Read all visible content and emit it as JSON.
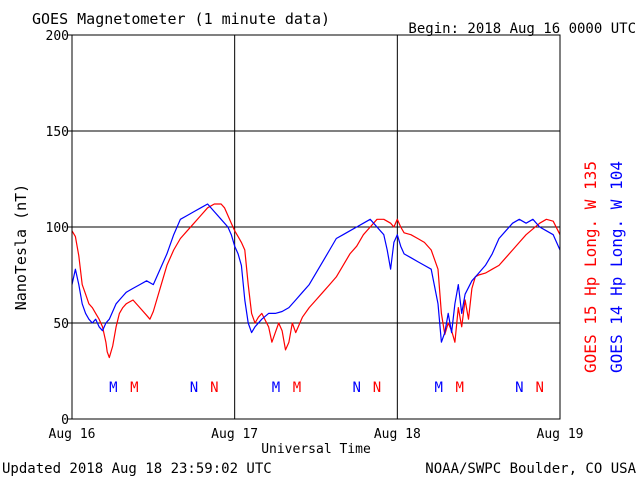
{
  "chart_data": {
    "type": "line",
    "title": "GOES Magnetometer (1 minute data)",
    "begin_label": "Begin:  2018 Aug 16 0000 UTC",
    "ylabel": "NanoTesla (nT)",
    "xlabel": "Universal Time",
    "ylim": [
      0,
      200
    ],
    "yticks": [
      "0",
      "50",
      "100",
      "150",
      "200"
    ],
    "xlim": [
      0,
      72
    ],
    "xticks": [
      {
        "x": 0,
        "label": "Aug 16"
      },
      {
        "x": 24,
        "label": "Aug 17"
      },
      {
        "x": 48,
        "label": "Aug 18"
      },
      {
        "x": 72,
        "label": "Aug 19"
      }
    ],
    "grid": true,
    "x_units": "hours since 2018 Aug 16 0000 UTC",
    "markers": [
      {
        "x": 6.1,
        "label": "M",
        "series": 1
      },
      {
        "x": 9.2,
        "label": "M",
        "series": 0
      },
      {
        "x": 18.0,
        "label": "N",
        "series": 1
      },
      {
        "x": 21.0,
        "label": "N",
        "series": 0
      },
      {
        "x": 30.1,
        "label": "M",
        "series": 1
      },
      {
        "x": 33.2,
        "label": "M",
        "series": 0
      },
      {
        "x": 42.0,
        "label": "N",
        "series": 1
      },
      {
        "x": 45.0,
        "label": "N",
        "series": 0
      },
      {
        "x": 54.1,
        "label": "M",
        "series": 1
      },
      {
        "x": 57.2,
        "label": "M",
        "series": 0
      },
      {
        "x": 66.0,
        "label": "N",
        "series": 1
      },
      {
        "x": 69.0,
        "label": "N",
        "series": 0
      }
    ],
    "series": [
      {
        "name": "GOES 15 Hp  Long. W 135",
        "color": "#ff0000",
        "points": [
          [
            0,
            98
          ],
          [
            0.5,
            95
          ],
          [
            1.0,
            85
          ],
          [
            1.5,
            70
          ],
          [
            2.0,
            65
          ],
          [
            2.5,
            60
          ],
          [
            3.0,
            58
          ],
          [
            3.5,
            55
          ],
          [
            4.0,
            52
          ],
          [
            4.5,
            48
          ],
          [
            5.0,
            40
          ],
          [
            5.2,
            35
          ],
          [
            5.5,
            32
          ],
          [
            6.0,
            38
          ],
          [
            6.5,
            48
          ],
          [
            7.0,
            55
          ],
          [
            7.5,
            58
          ],
          [
            8.0,
            60
          ],
          [
            9.0,
            62
          ],
          [
            10.0,
            58
          ],
          [
            11.0,
            54
          ],
          [
            11.5,
            52
          ],
          [
            12.0,
            56
          ],
          [
            13.0,
            68
          ],
          [
            14.0,
            80
          ],
          [
            15.0,
            88
          ],
          [
            16.0,
            94
          ],
          [
            17.0,
            98
          ],
          [
            18.0,
            102
          ],
          [
            19.0,
            106
          ],
          [
            20.0,
            110
          ],
          [
            21.0,
            112
          ],
          [
            22.0,
            112
          ],
          [
            22.5,
            110
          ],
          [
            23.0,
            106
          ],
          [
            23.5,
            102
          ],
          [
            24.0,
            98
          ],
          [
            24.5,
            95
          ],
          [
            25.0,
            92
          ],
          [
            25.5,
            88
          ],
          [
            26.0,
            70
          ],
          [
            26.5,
            55
          ],
          [
            27.0,
            50
          ],
          [
            27.5,
            53
          ],
          [
            28.0,
            55
          ],
          [
            29.0,
            48
          ],
          [
            29.5,
            40
          ],
          [
            30.0,
            45
          ],
          [
            30.5,
            50
          ],
          [
            31.0,
            46
          ],
          [
            31.5,
            36
          ],
          [
            32.0,
            40
          ],
          [
            32.5,
            50
          ],
          [
            33.0,
            45
          ],
          [
            34.0,
            53
          ],
          [
            35.0,
            58
          ],
          [
            36.0,
            62
          ],
          [
            37.0,
            66
          ],
          [
            38.0,
            70
          ],
          [
            39.0,
            74
          ],
          [
            40.0,
            80
          ],
          [
            41.0,
            86
          ],
          [
            42.0,
            90
          ],
          [
            43.0,
            96
          ],
          [
            44.0,
            100
          ],
          [
            45.0,
            104
          ],
          [
            46.0,
            104
          ],
          [
            47.0,
            102
          ],
          [
            47.5,
            100
          ],
          [
            48.0,
            104
          ],
          [
            48.5,
            100
          ],
          [
            49.0,
            97
          ],
          [
            50.0,
            96
          ],
          [
            51.0,
            94
          ],
          [
            52.0,
            92
          ],
          [
            53.0,
            88
          ],
          [
            54.0,
            78
          ],
          [
            54.5,
            55
          ],
          [
            55.0,
            44
          ],
          [
            55.5,
            50
          ],
          [
            56.0,
            46
          ],
          [
            56.5,
            40
          ],
          [
            57.0,
            58
          ],
          [
            57.5,
            48
          ],
          [
            58.0,
            62
          ],
          [
            58.5,
            52
          ],
          [
            59.0,
            68
          ],
          [
            59.5,
            74
          ],
          [
            60.0,
            75
          ],
          [
            61.0,
            76
          ],
          [
            62.0,
            78
          ],
          [
            63.0,
            80
          ],
          [
            64.0,
            84
          ],
          [
            65.0,
            88
          ],
          [
            66.0,
            92
          ],
          [
            67.0,
            96
          ],
          [
            68.0,
            99
          ],
          [
            69.0,
            102
          ],
          [
            70.0,
            104
          ],
          [
            71.0,
            103
          ],
          [
            72.0,
            96
          ]
        ]
      },
      {
        "name": "GOES 14 Hp  Long. W 104",
        "color": "#0000ff",
        "points": [
          [
            0,
            70
          ],
          [
            0.5,
            78
          ],
          [
            1.0,
            70
          ],
          [
            1.5,
            60
          ],
          [
            2.0,
            55
          ],
          [
            2.5,
            52
          ],
          [
            3.0,
            50
          ],
          [
            3.5,
            52
          ],
          [
            4.0,
            48
          ],
          [
            4.5,
            46
          ],
          [
            5.0,
            50
          ],
          [
            5.5,
            52
          ],
          [
            6.0,
            56
          ],
          [
            6.5,
            60
          ],
          [
            7.0,
            62
          ],
          [
            7.5,
            64
          ],
          [
            8.0,
            66
          ],
          [
            9.0,
            68
          ],
          [
            10.0,
            70
          ],
          [
            11.0,
            72
          ],
          [
            12.0,
            70
          ],
          [
            13.0,
            78
          ],
          [
            14.0,
            86
          ],
          [
            15.0,
            96
          ],
          [
            16.0,
            104
          ],
          [
            17.0,
            106
          ],
          [
            18.0,
            108
          ],
          [
            19.0,
            110
          ],
          [
            20.0,
            112
          ],
          [
            21.0,
            108
          ],
          [
            22.0,
            104
          ],
          [
            23.0,
            100
          ],
          [
            23.5,
            96
          ],
          [
            24.0,
            90
          ],
          [
            24.5,
            86
          ],
          [
            25.0,
            80
          ],
          [
            25.5,
            62
          ],
          [
            26.0,
            50
          ],
          [
            26.5,
            45
          ],
          [
            27.0,
            48
          ],
          [
            28.0,
            52
          ],
          [
            29.0,
            55
          ],
          [
            30.0,
            55
          ],
          [
            31.0,
            56
          ],
          [
            32.0,
            58
          ],
          [
            33.0,
            62
          ],
          [
            34.0,
            66
          ],
          [
            35.0,
            70
          ],
          [
            36.0,
            76
          ],
          [
            37.0,
            82
          ],
          [
            38.0,
            88
          ],
          [
            39.0,
            94
          ],
          [
            40.0,
            96
          ],
          [
            41.0,
            98
          ],
          [
            42.0,
            100
          ],
          [
            43.0,
            102
          ],
          [
            44.0,
            104
          ],
          [
            45.0,
            100
          ],
          [
            46.0,
            96
          ],
          [
            46.5,
            88
          ],
          [
            47.0,
            78
          ],
          [
            47.5,
            92
          ],
          [
            48.0,
            96
          ],
          [
            48.5,
            90
          ],
          [
            49.0,
            86
          ],
          [
            50.0,
            84
          ],
          [
            51.0,
            82
          ],
          [
            52.0,
            80
          ],
          [
            53.0,
            78
          ],
          [
            54.0,
            60
          ],
          [
            54.5,
            40
          ],
          [
            55.0,
            45
          ],
          [
            55.5,
            55
          ],
          [
            56.0,
            45
          ],
          [
            56.5,
            60
          ],
          [
            57.0,
            70
          ],
          [
            57.5,
            55
          ],
          [
            58.0,
            65
          ],
          [
            59.0,
            72
          ],
          [
            60.0,
            76
          ],
          [
            61.0,
            80
          ],
          [
            62.0,
            86
          ],
          [
            63.0,
            94
          ],
          [
            64.0,
            98
          ],
          [
            65.0,
            102
          ],
          [
            66.0,
            104
          ],
          [
            67.0,
            102
          ],
          [
            68.0,
            104
          ],
          [
            69.0,
            100
          ],
          [
            70.0,
            98
          ],
          [
            71.0,
            96
          ],
          [
            72.0,
            88
          ]
        ]
      }
    ]
  },
  "footer": {
    "updated": "Updated 2018 Aug 18 23:59:02 UTC",
    "source": "NOAA/SWPC Boulder, CO USA"
  }
}
